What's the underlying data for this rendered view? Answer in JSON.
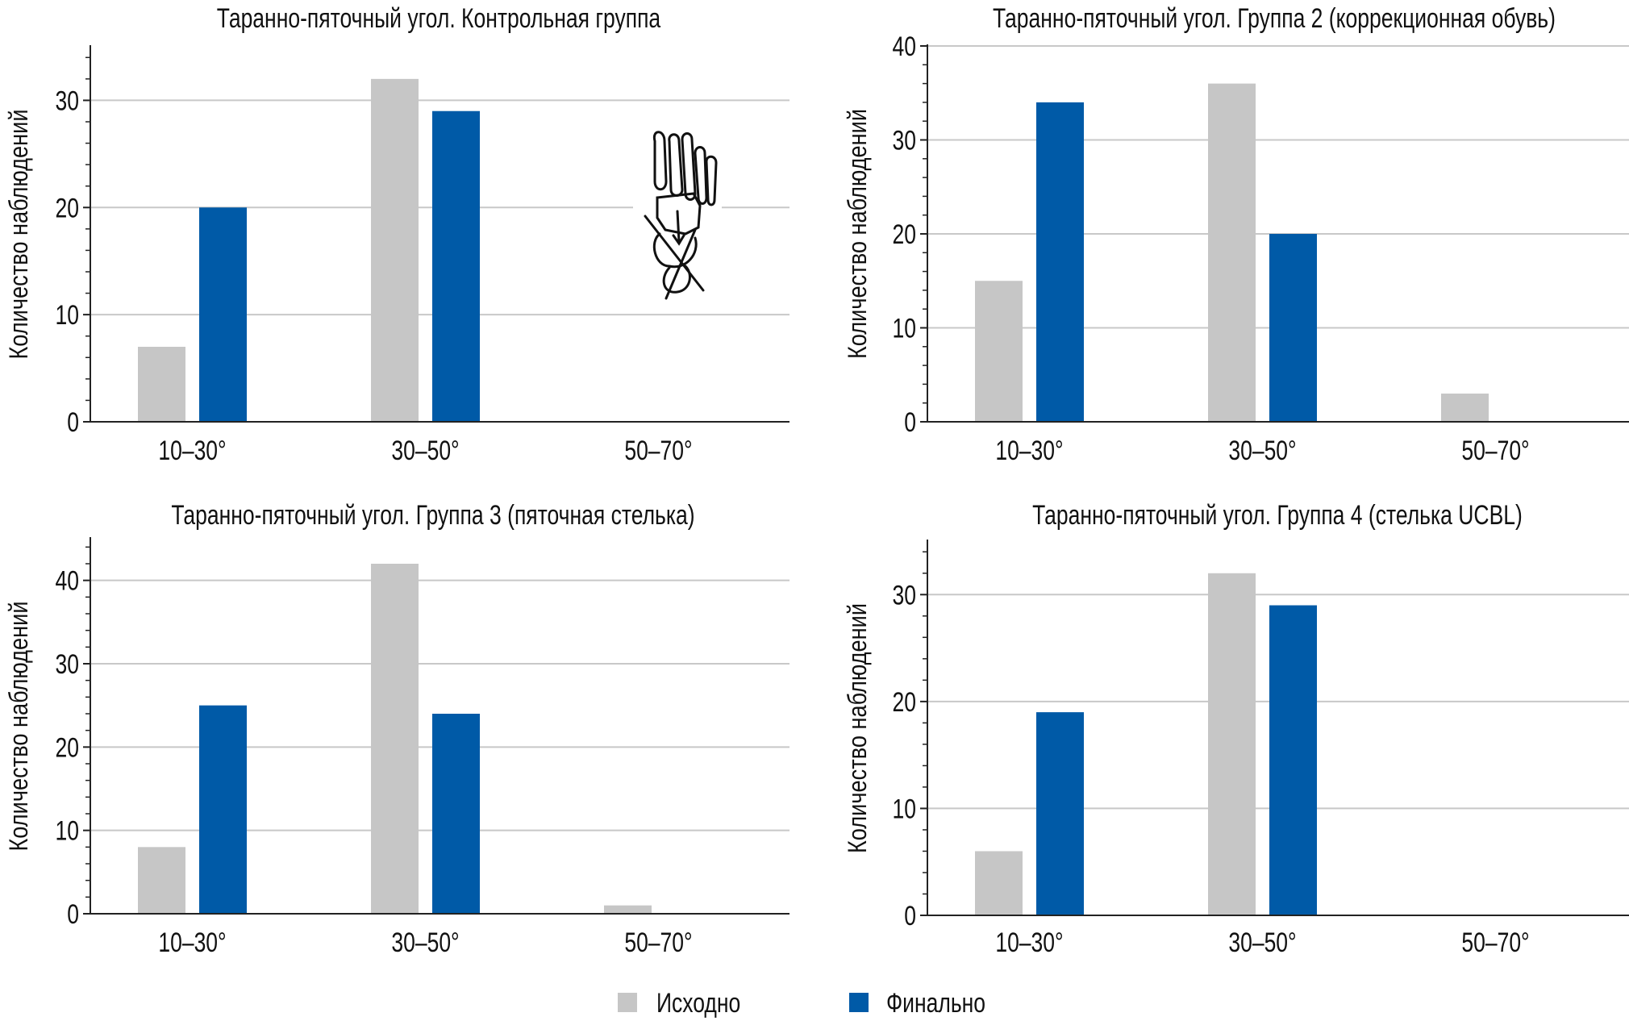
{
  "colors": {
    "initial": "#c6c6c6",
    "final": "#005aa7",
    "grid": "#c8c8c8",
    "axis": "#222222"
  },
  "legend": [
    {
      "label": "Исходно",
      "series": "initial"
    },
    {
      "label": "Финально",
      "series": "final"
    }
  ],
  "chart_data": [
    {
      "type": "bar",
      "title": "Таранно-пяточный угол. Контрольная группа",
      "ylabel": "Количество наблюдений",
      "xlabel": "",
      "categories": [
        "10–30°",
        "30–50°",
        "50–70°"
      ],
      "series": [
        {
          "name": "Исходно",
          "values": [
            7,
            32,
            0
          ]
        },
        {
          "name": "Финально",
          "values": [
            20,
            29,
            0
          ]
        }
      ],
      "ylim": [
        0,
        35
      ],
      "yticks": [
        0,
        10,
        20,
        30
      ],
      "grid": true,
      "has_foot_illustration": true
    },
    {
      "type": "bar",
      "title": "Таранно-пяточный угол. Группа 2 (коррекционная обувь)",
      "ylabel": "Количество наблюдений",
      "xlabel": "",
      "categories": [
        "10–30°",
        "30–50°",
        "50–70°"
      ],
      "series": [
        {
          "name": "Исходно",
          "values": [
            15,
            36,
            3
          ]
        },
        {
          "name": "Финально",
          "values": [
            34,
            20,
            0
          ]
        }
      ],
      "ylim": [
        0,
        40
      ],
      "yticks": [
        0,
        10,
        20,
        30,
        40
      ],
      "grid": true
    },
    {
      "type": "bar",
      "title": "Таранно-пяточный угол. Группа 3 (пяточная стелька)",
      "ylabel": "Количество наблюдений",
      "xlabel": "",
      "categories": [
        "10–30°",
        "30–50°",
        "50–70°"
      ],
      "series": [
        {
          "name": "Исходно",
          "values": [
            8,
            42,
            1
          ]
        },
        {
          "name": "Финально",
          "values": [
            25,
            24,
            0
          ]
        }
      ],
      "ylim": [
        0,
        45
      ],
      "yticks": [
        0,
        10,
        20,
        30,
        40
      ],
      "grid": true
    },
    {
      "type": "bar",
      "title": "Таранно-пяточный угол. Группа 4 (стелька UCBL)",
      "ylabel": "Количество наблюдений",
      "xlabel": "",
      "categories": [
        "10–30°",
        "30–50°",
        "50–70°"
      ],
      "series": [
        {
          "name": "Исходно",
          "values": [
            6,
            32,
            0
          ]
        },
        {
          "name": "Финально",
          "values": [
            19,
            29,
            0
          ]
        }
      ],
      "ylim": [
        0,
        35
      ],
      "yticks": [
        0,
        10,
        20,
        30
      ],
      "grid": true
    }
  ]
}
